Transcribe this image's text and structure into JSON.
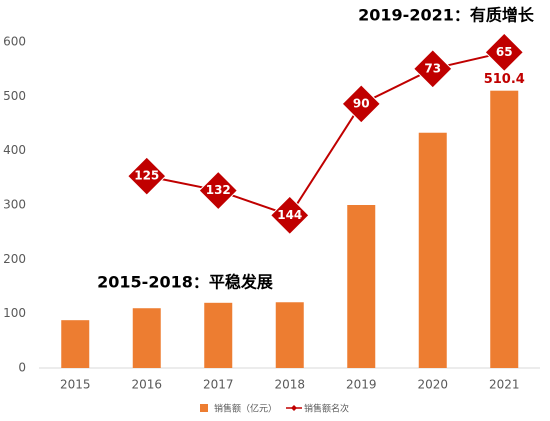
{
  "chart_data": {
    "type": "bar_line",
    "annotations": [
      "2019-2021：有质增长",
      "2015-2018：平稳发展"
    ],
    "categories": [
      "2015",
      "2016",
      "2017",
      "2018",
      "2019",
      "2020",
      "2021"
    ],
    "series": [
      {
        "name": "销售额（亿元）",
        "type": "bar",
        "color": "#ed7d31",
        "values": [
          88,
          110,
          120,
          121,
          300,
          433,
          510.4
        ],
        "value_labels": [
          null,
          null,
          null,
          null,
          null,
          null,
          "510.4"
        ]
      },
      {
        "name": "销售额名次",
        "type": "line",
        "axis": "y2",
        "color": "#c00000",
        "values": [
          null,
          125,
          132,
          144,
          90,
          73,
          65
        ]
      }
    ],
    "ylim": [
      0,
      600
    ],
    "yticks": [
      0,
      100,
      200,
      300,
      400,
      500,
      600
    ],
    "y2lim": [
      218,
      60
    ],
    "legend": "bottom"
  }
}
